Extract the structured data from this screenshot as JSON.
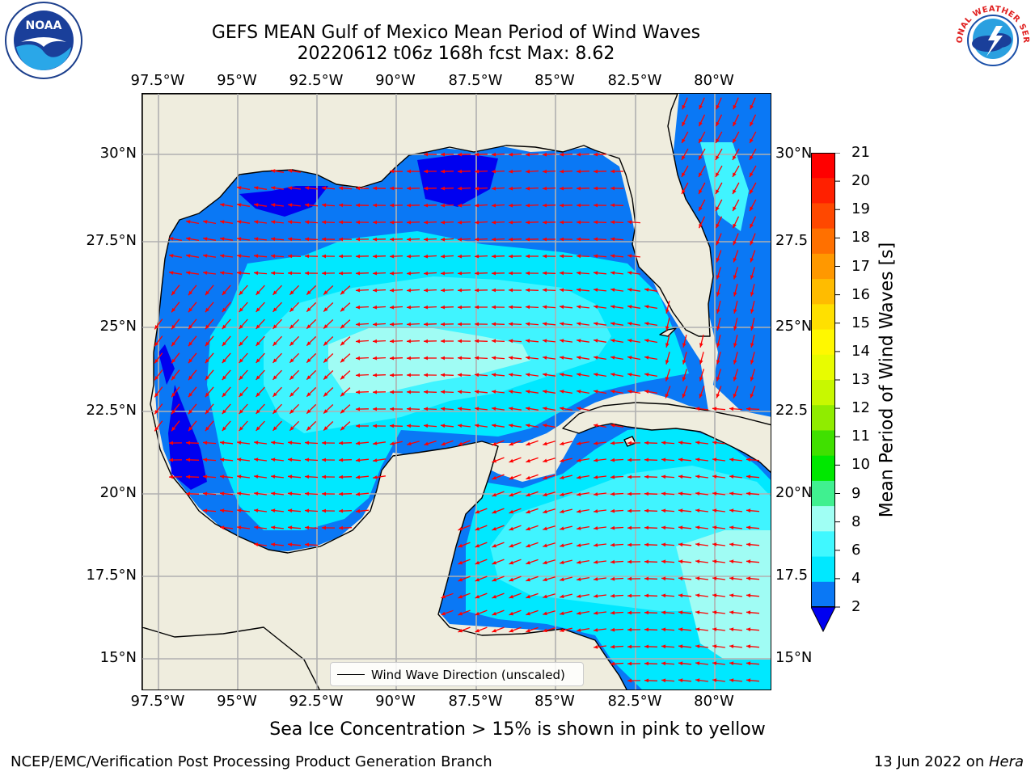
{
  "title": {
    "line1": "GEFS MEAN Gulf of Mexico Mean Period of Wind Waves",
    "line2": "20220612 t06z 168h fcst   Max: 8.62"
  },
  "logos": {
    "left": {
      "icon": "noaa-logo",
      "text": "NOAA"
    },
    "right": {
      "icon": "nws-logo",
      "text": "NATIONAL WEATHER SERVICE"
    }
  },
  "map": {
    "lon_labels": [
      "97.5°W",
      "95°W",
      "92.5°W",
      "90°W",
      "87.5°W",
      "85°W",
      "82.5°W",
      "80°W"
    ],
    "lat_labels": [
      "30°N",
      "27.5°N",
      "25°N",
      "22.5°N",
      "20°N",
      "17.5°N",
      "15°N"
    ],
    "lat_labels_right": [
      "30°N",
      "27.5",
      "25°N",
      "22.5",
      "20°N",
      "17.5",
      "15°N"
    ],
    "legend": "Wind Wave Direction (unscaled)",
    "colors": {
      "land": "#efedde",
      "blue_2_4": "#0a78f5",
      "dark_lt2": "#0000f0",
      "cyan_4_6": "#00e8ff",
      "cyan_6_8": "#40f4ff",
      "cyan_8_9": "#a0fcf4",
      "arrow": "#ff0000",
      "grid": "#b0b0b0"
    }
  },
  "colorbar": {
    "label": "Mean Period of Wind Waves [s]",
    "ticks": [
      "21",
      "20",
      "19",
      "18",
      "17",
      "16",
      "15",
      "14",
      "13",
      "12",
      "11",
      "10",
      "9",
      "8",
      "6",
      "4",
      "2"
    ],
    "colors": [
      "#ff0000",
      "#ff2000",
      "#ff4800",
      "#ff7000",
      "#ff9800",
      "#ffbc00",
      "#ffe000",
      "#fff800",
      "#e8fc00",
      "#c8f800",
      "#90ec00",
      "#40e000",
      "#00e800",
      "#40f090",
      "#a0fff4",
      "#40f8ff",
      "#00e8ff",
      "#0a78f5"
    ],
    "extend_color": "#0000f0"
  },
  "caption": "Sea Ice Concentration > 15% is shown in pink to yellow",
  "footer": {
    "left": "NCEP/EMC/Verification Post Processing Product Generation Branch",
    "right_text": "13 Jun 2022 on ",
    "right_italic": "Hera"
  }
}
